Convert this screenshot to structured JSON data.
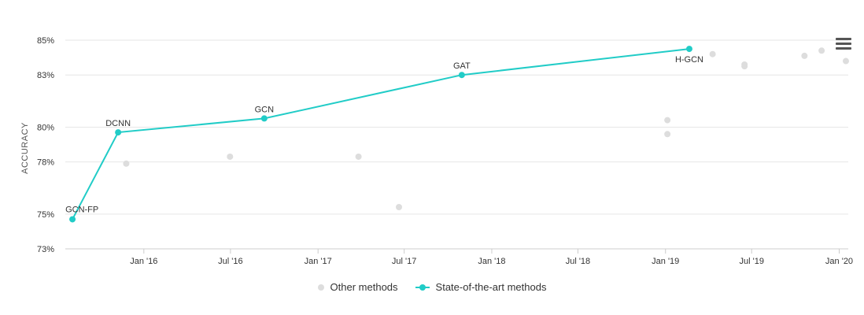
{
  "chart_data": {
    "type": "scatter",
    "ylabel": "ACCURACY",
    "ylim": [
      73,
      85.5
    ],
    "yticks": [
      73,
      75,
      78,
      80,
      83,
      85
    ],
    "ytick_labels": [
      "73%",
      "75%",
      "78%",
      "80%",
      "83%",
      "85%"
    ],
    "xlim": [
      "2015-07-20",
      "2020-01-20"
    ],
    "xticks": [
      "2016-01-01",
      "2016-07-01",
      "2017-01-01",
      "2017-07-01",
      "2018-01-01",
      "2018-07-01",
      "2019-01-01",
      "2019-07-01",
      "2020-01-01"
    ],
    "xtick_labels": [
      "Jan '16",
      "Jul '16",
      "Jan '17",
      "Jul '17",
      "Jan '18",
      "Jul '18",
      "Jan '19",
      "Jul '19",
      "Jan '20"
    ],
    "grid": true,
    "legend_position": "bottom-center",
    "series": [
      {
        "name": "Other methods",
        "color": "#dddddd",
        "mode": "markers",
        "points": [
          {
            "x": "2015-11-25",
            "y": 77.9
          },
          {
            "x": "2016-06-30",
            "y": 78.3
          },
          {
            "x": "2017-03-27",
            "y": 78.3
          },
          {
            "x": "2017-06-20",
            "y": 75.4
          },
          {
            "x": "2019-01-05",
            "y": 80.4
          },
          {
            "x": "2019-01-05",
            "y": 79.6
          },
          {
            "x": "2019-04-10",
            "y": 84.2
          },
          {
            "x": "2019-06-16",
            "y": 83.6
          },
          {
            "x": "2019-06-16",
            "y": 83.5
          },
          {
            "x": "2019-10-20",
            "y": 84.1
          },
          {
            "x": "2019-11-25",
            "y": 84.4
          },
          {
            "x": "2020-01-15",
            "y": 83.8
          }
        ]
      },
      {
        "name": "State-of-the-art methods",
        "color": "#21ccc7",
        "mode": "lines+markers",
        "points": [
          {
            "x": "2015-08-04",
            "y": 74.7,
            "label": "GCN-FP"
          },
          {
            "x": "2015-11-08",
            "y": 79.7,
            "label": "DCNN"
          },
          {
            "x": "2016-09-10",
            "y": 80.5,
            "label": "GCN"
          },
          {
            "x": "2017-10-30",
            "y": 83.0,
            "label": "GAT"
          },
          {
            "x": "2019-02-20",
            "y": 84.5,
            "label": "H-GCN"
          }
        ]
      }
    ]
  },
  "legend": {
    "other_label": "Other methods",
    "sota_label": "State-of-the-art methods"
  },
  "icons": {
    "menu": "hamburger-menu-icon"
  }
}
